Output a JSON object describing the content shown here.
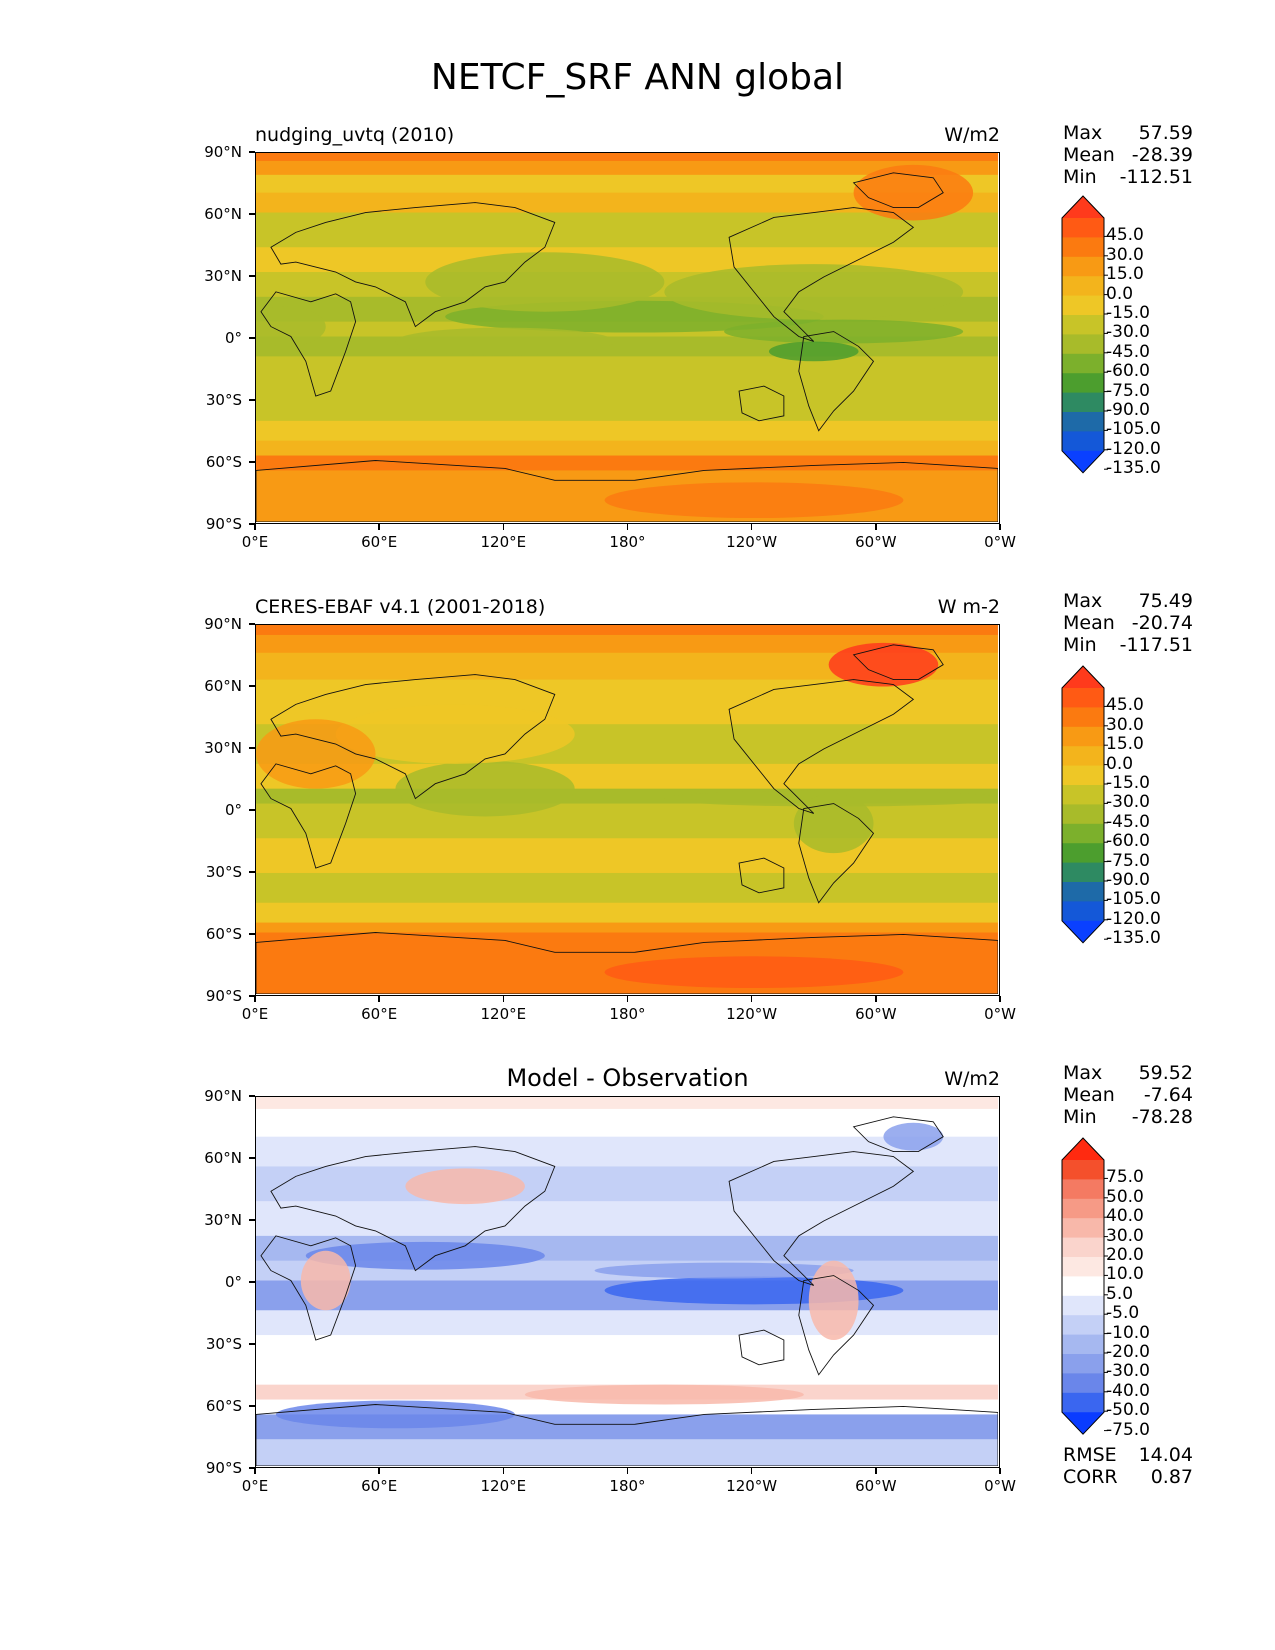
{
  "title": "NETCF_SRF ANN global",
  "x_ticks": [
    "0°E",
    "60°E",
    "120°E",
    "180°",
    "120°W",
    "60°W",
    "0°W"
  ],
  "y_ticks": [
    "90°N",
    "60°N",
    "30°N",
    "0°",
    "30°S",
    "60°S",
    "90°S"
  ],
  "panels": [
    {
      "name": "model",
      "title_left": "nudging_uvtq (2010)",
      "title_center": "",
      "units": "W/m2",
      "stats": [
        {
          "label": "Max",
          "value": "57.59"
        },
        {
          "label": "Mean",
          "value": "-28.39"
        },
        {
          "label": "Min",
          "value": "-112.51"
        }
      ],
      "colorbar": {
        "labels": [
          "45.0",
          "30.0",
          "15.0",
          "0.0",
          "-15.0",
          "-30.0",
          "-45.0",
          "-60.0",
          "-75.0",
          "-90.0",
          "-105.0",
          "-120.0",
          "-135.0"
        ],
        "colors": [
          "#ff3a1c",
          "#ff5a14",
          "#fb7a10",
          "#f89a14",
          "#f3b41c",
          "#eec726",
          "#c8c428",
          "#a8bb2a",
          "#7cb02c",
          "#4c9e2e",
          "#2e8a62",
          "#1e6aa8",
          "#1458d8",
          "#0a40ff"
        ]
      }
    },
    {
      "name": "obs",
      "title_left": "CERES-EBAF v4.1 (2001-2018)",
      "title_center": "",
      "units": "W m-2",
      "stats": [
        {
          "label": "Max",
          "value": "75.49"
        },
        {
          "label": "Mean",
          "value": "-20.74"
        },
        {
          "label": "Min",
          "value": "-117.51"
        }
      ],
      "colorbar": {
        "labels": [
          "45.0",
          "30.0",
          "15.0",
          "0.0",
          "-15.0",
          "-30.0",
          "-45.0",
          "-60.0",
          "-75.0",
          "-90.0",
          "-105.0",
          "-120.0",
          "-135.0"
        ],
        "colors": [
          "#ff3a1c",
          "#ff5a14",
          "#fb7a10",
          "#f89a14",
          "#f3b41c",
          "#eec726",
          "#c8c428",
          "#a8bb2a",
          "#7cb02c",
          "#4c9e2e",
          "#2e8a62",
          "#1e6aa8",
          "#1458d8",
          "#0a40ff"
        ]
      }
    },
    {
      "name": "diff",
      "title_left": "",
      "title_center": "Model - Observation",
      "units": "W/m2",
      "stats": [
        {
          "label": "Max",
          "value": "59.52"
        },
        {
          "label": "Mean",
          "value": "-7.64"
        },
        {
          "label": "Min",
          "value": "-78.28"
        }
      ],
      "extra_stats": [
        {
          "label": "RMSE",
          "value": "14.04"
        },
        {
          "label": "CORR",
          "value": "0.87"
        }
      ],
      "colorbar": {
        "labels": [
          "75.0",
          "50.0",
          "40.0",
          "30.0",
          "20.0",
          "10.0",
          "5.0",
          "-5.0",
          "-10.0",
          "-20.0",
          "-30.0",
          "-40.0",
          "-50.0",
          "-75.0"
        ],
        "colors": [
          "#ff2a10",
          "#f4502c",
          "#f47a62",
          "#f69a86",
          "#f8b8aa",
          "#fad4cc",
          "#fde8e2",
          "#ffffff",
          "#e0e6fb",
          "#c4d0f6",
          "#a6b8f0",
          "#8aa0ec",
          "#6a86ea",
          "#3a66f0",
          "#0a3cff"
        ]
      }
    }
  ]
}
